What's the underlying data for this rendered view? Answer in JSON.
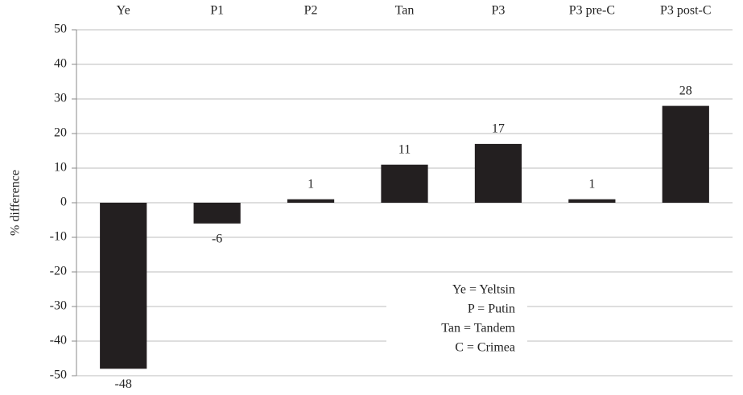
{
  "chart_data": {
    "type": "bar",
    "y_label": "% difference",
    "categories": [
      "Ye",
      "P1",
      "P2",
      "Tan",
      "P3",
      "P3 pre-C",
      "P3 post-C"
    ],
    "values": [
      -48,
      -6,
      1,
      11,
      17,
      1,
      28
    ],
    "color": "#231f20",
    "ylim": [
      -50,
      50
    ],
    "yticks": [
      -50,
      -40,
      -30,
      -20,
      -10,
      0,
      10,
      20,
      30,
      40,
      50
    ],
    "grid": true,
    "annotations": [
      "Ye = Yeltsin",
      "P = Putin",
      "Tan = Tandem",
      "C = Crimea"
    ]
  }
}
